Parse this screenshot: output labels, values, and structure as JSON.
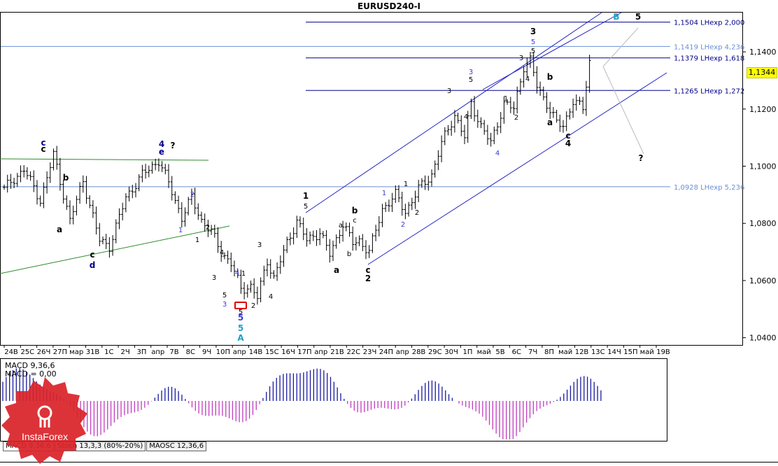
{
  "title": "EURUSD240-I",
  "current_price": "1,1344",
  "macd_labels": [
    "MACD 9,36,6",
    "MACD = 0,00"
  ],
  "tabs": [
    {
      "label": "MACD 9,36,6",
      "active": true
    },
    {
      "label": "Stoch 13,3,3 (80%-20%)",
      "active": false
    },
    {
      "label": "MAOSC 12,36,6",
      "active": false
    }
  ],
  "logo_text": "InstaForex",
  "chart_data": {
    "type": "ohlc",
    "symbol": "EURUSD240-I",
    "ylim": [
      1.04,
      1.16
    ],
    "yticks": [
      1.04,
      1.06,
      1.08,
      1.1,
      1.12,
      1.14
    ],
    "ytick_labels": [
      "1,0400",
      "1,0600",
      "1,0800",
      "1,1000",
      "1,1200",
      "1,1400"
    ],
    "xtick_labels": [
      "24В",
      "25С",
      "26Ч",
      "27П",
      "мар",
      "31В",
      "1С",
      "2Ч",
      "3П",
      "апр",
      "7В",
      "8С",
      "9Ч",
      "10П",
      "апр",
      "14В",
      "15С",
      "16Ч",
      "17П",
      "апр",
      "21В",
      "22С",
      "23Ч",
      "24П",
      "апр",
      "28В",
      "29С",
      "30Ч",
      "1П",
      "май",
      "5В",
      "6С",
      "7Ч",
      "8П",
      "май",
      "12В",
      "13С",
      "14Ч",
      "15П",
      "май",
      "19В"
    ],
    "anchors": [
      [
        0,
        1.092
      ],
      [
        6,
        1.099
      ],
      [
        11,
        1.088
      ],
      [
        15,
        1.104
      ],
      [
        20,
        1.081
      ],
      [
        24,
        1.095
      ],
      [
        29,
        1.074
      ],
      [
        32,
        1.072
      ],
      [
        37,
        1.089
      ],
      [
        42,
        1.097
      ],
      [
        47,
        1.102
      ],
      [
        50,
        1.094
      ],
      [
        54,
        1.082
      ],
      [
        57,
        1.089
      ],
      [
        60,
        1.081
      ],
      [
        63,
        1.077
      ],
      [
        66,
        1.07
      ],
      [
        69,
        1.066
      ],
      [
        72,
        1.057
      ],
      [
        75,
        1.058
      ],
      [
        77,
        1.054
      ],
      [
        80,
        1.067
      ],
      [
        82,
        1.061
      ],
      [
        86,
        1.073
      ],
      [
        89,
        1.081
      ],
      [
        92,
        1.074
      ],
      [
        96,
        1.077
      ],
      [
        99,
        1.069
      ],
      [
        103,
        1.08
      ],
      [
        106,
        1.073
      ],
      [
        108,
        1.074
      ],
      [
        111,
        1.07
      ],
      [
        115,
        1.085
      ],
      [
        119,
        1.09
      ],
      [
        122,
        1.084
      ],
      [
        126,
        1.092
      ],
      [
        130,
        1.097
      ],
      [
        133,
        1.108
      ],
      [
        137,
        1.118
      ],
      [
        140,
        1.11
      ],
      [
        142,
        1.122
      ],
      [
        145,
        1.114
      ],
      [
        148,
        1.108
      ],
      [
        152,
        1.122
      ],
      [
        155,
        1.12
      ],
      [
        158,
        1.135
      ],
      [
        160,
        1.137
      ],
      [
        162,
        1.128
      ],
      [
        165,
        1.122
      ],
      [
        168,
        1.115
      ],
      [
        170,
        1.114
      ],
      [
        173,
        1.123
      ],
      [
        176,
        1.12
      ],
      [
        178,
        1.137
      ]
    ],
    "hlines": [
      {
        "price": 1.1504,
        "label": "1,1504 LHexp 2,000",
        "color": "#00008b"
      },
      {
        "price": 1.1419,
        "label": "1,1419 LHexp 4,236",
        "color": "#6b8fd4"
      },
      {
        "price": 1.1379,
        "label": "1,1379 LHexp 1,618",
        "color": "#00008b"
      },
      {
        "price": 1.1265,
        "label": "1,1265 LHexp 1,272",
        "color": "#00008b"
      },
      {
        "price": 1.0928,
        "label": "1,0928 LHexp 5,236",
        "color": "#6b8fd4"
      }
    ],
    "wave_labels": [
      {
        "t": "c",
        "x": 62,
        "y": 208,
        "c": "#00008b",
        "b": true
      },
      {
        "t": "c",
        "x": 62,
        "y": 217,
        "c": "#000000",
        "b": true
      },
      {
        "t": "4",
        "x": 231,
        "y": 210,
        "c": "#00008b",
        "b": true
      },
      {
        "t": "e",
        "x": 231,
        "y": 221,
        "c": "#00008b",
        "b": true
      },
      {
        "t": "?",
        "x": 247,
        "y": 212,
        "c": "#000000",
        "b": true
      },
      {
        "t": "b",
        "x": 94,
        "y": 258,
        "c": "#000000",
        "b": true
      },
      {
        "t": "a",
        "x": 85,
        "y": 332,
        "c": "#000000",
        "b": true
      },
      {
        "t": "c",
        "x": 132,
        "y": 368,
        "c": "#000000",
        "b": true
      },
      {
        "t": "d",
        "x": 132,
        "y": 383,
        "c": "#00008b",
        "b": true
      },
      {
        "t": "2",
        "x": 275,
        "y": 281,
        "c": "#3a3adf",
        "b": false
      },
      {
        "t": "1",
        "x": 258,
        "y": 332,
        "c": "#3a3adf",
        "b": false
      },
      {
        "t": "2",
        "x": 297,
        "y": 328,
        "c": "#000000",
        "b": false
      },
      {
        "t": "1",
        "x": 282,
        "y": 346,
        "c": "#000000",
        "b": false
      },
      {
        "t": "4",
        "x": 317,
        "y": 364,
        "c": "#000000",
        "b": false
      },
      {
        "t": "3",
        "x": 306,
        "y": 400,
        "c": "#000000",
        "b": false
      },
      {
        "t": "4",
        "x": 339,
        "y": 393,
        "c": "#3a3adf",
        "b": false
      },
      {
        "t": "1",
        "x": 348,
        "y": 394,
        "c": "#000000",
        "b": false
      },
      {
        "t": "5",
        "x": 321,
        "y": 425,
        "c": "#000000",
        "b": false
      },
      {
        "t": "3",
        "x": 321,
        "y": 438,
        "c": "#3a3adf",
        "b": false
      },
      {
        "t": "3",
        "x": 371,
        "y": 353,
        "c": "#000000",
        "b": false
      },
      {
        "t": "4",
        "x": 387,
        "y": 427,
        "c": "#000000",
        "b": false
      },
      {
        "t": "2",
        "x": 362,
        "y": 440,
        "c": "#000000",
        "b": false
      },
      {
        "t": "5",
        "x": 344,
        "y": 449,
        "c": "#000000",
        "b": false
      },
      {
        "t": "5",
        "x": 344,
        "y": 458,
        "c": "#3a3adf",
        "b": true
      },
      {
        "t": "5",
        "x": 344,
        "y": 473,
        "c": "#20a0c8",
        "b": true
      },
      {
        "t": "A",
        "x": 344,
        "y": 487,
        "c": "#20a0c8",
        "b": true
      },
      {
        "t": "1",
        "x": 437,
        "y": 284,
        "c": "#000000",
        "b": true
      },
      {
        "t": "5",
        "x": 437,
        "y": 298,
        "c": "#000000",
        "b": false
      },
      {
        "t": "a",
        "x": 487,
        "y": 325,
        "c": "#000000",
        "b": false
      },
      {
        "t": "c",
        "x": 507,
        "y": 318,
        "c": "#000000",
        "b": false
      },
      {
        "t": "b",
        "x": 507,
        "y": 305,
        "c": "#000000",
        "b": true
      },
      {
        "t": "b",
        "x": 499,
        "y": 366,
        "c": "#000000",
        "b": false
      },
      {
        "t": "a",
        "x": 481,
        "y": 390,
        "c": "#000000",
        "b": true
      },
      {
        "t": "c",
        "x": 526,
        "y": 390,
        "c": "#000000",
        "b": true
      },
      {
        "t": "2",
        "x": 526,
        "y": 402,
        "c": "#000000",
        "b": true
      },
      {
        "t": "1",
        "x": 549,
        "y": 279,
        "c": "#3a3adf",
        "b": false
      },
      {
        "t": "1",
        "x": 580,
        "y": 266,
        "c": "#000000",
        "b": false
      },
      {
        "t": "2",
        "x": 576,
        "y": 324,
        "c": "#3a3adf",
        "b": false
      },
      {
        "t": "2",
        "x": 596,
        "y": 307,
        "c": "#000000",
        "b": false
      },
      {
        "t": "3",
        "x": 673,
        "y": 106,
        "c": "#3a3adf",
        "b": false
      },
      {
        "t": "5",
        "x": 673,
        "y": 117,
        "c": "#000000",
        "b": false
      },
      {
        "t": "3",
        "x": 642,
        "y": 133,
        "c": "#000000",
        "b": false
      },
      {
        "t": "4",
        "x": 666,
        "y": 170,
        "c": "#000000",
        "b": false
      },
      {
        "t": "4",
        "x": 711,
        "y": 222,
        "c": "#3a3adf",
        "b": false
      },
      {
        "t": "1",
        "x": 723,
        "y": 144,
        "c": "#000000",
        "b": false
      },
      {
        "t": "2",
        "x": 738,
        "y": 171,
        "c": "#000000",
        "b": false
      },
      {
        "t": "3",
        "x": 762,
        "y": 49,
        "c": "#000000",
        "b": true
      },
      {
        "t": "5",
        "x": 762,
        "y": 63,
        "c": "#3a3adf",
        "b": false
      },
      {
        "t": "3",
        "x": 745,
        "y": 86,
        "c": "#000000",
        "b": false
      },
      {
        "t": "5",
        "x": 762,
        "y": 76,
        "c": "#000000",
        "b": false
      },
      {
        "t": "4",
        "x": 754,
        "y": 116,
        "c": "#000000",
        "b": false
      },
      {
        "t": "b",
        "x": 786,
        "y": 114,
        "c": "#000000",
        "b": true
      },
      {
        "t": "a",
        "x": 786,
        "y": 179,
        "c": "#000000",
        "b": true
      },
      {
        "t": "c",
        "x": 812,
        "y": 198,
        "c": "#000000",
        "b": true
      },
      {
        "t": "4",
        "x": 812,
        "y": 209,
        "c": "#000000",
        "b": true
      },
      {
        "t": "B",
        "x": 881,
        "y": 28,
        "c": "#20a0c8",
        "b": true
      },
      {
        "t": "5",
        "x": 912,
        "y": 28,
        "c": "#000000",
        "b": true
      },
      {
        "t": "?",
        "x": 916,
        "y": 230,
        "c": "#000000",
        "b": true
      }
    ],
    "histogram_estimate": "MACD histogram oscillating: negative early (late Mar), strongly positive around 3-4 Apr, negative mid Apr, positive 15-17 Apr, mostly positive into May with negative dips near 5-7 May and 11-13 May, rising positive at end"
  }
}
